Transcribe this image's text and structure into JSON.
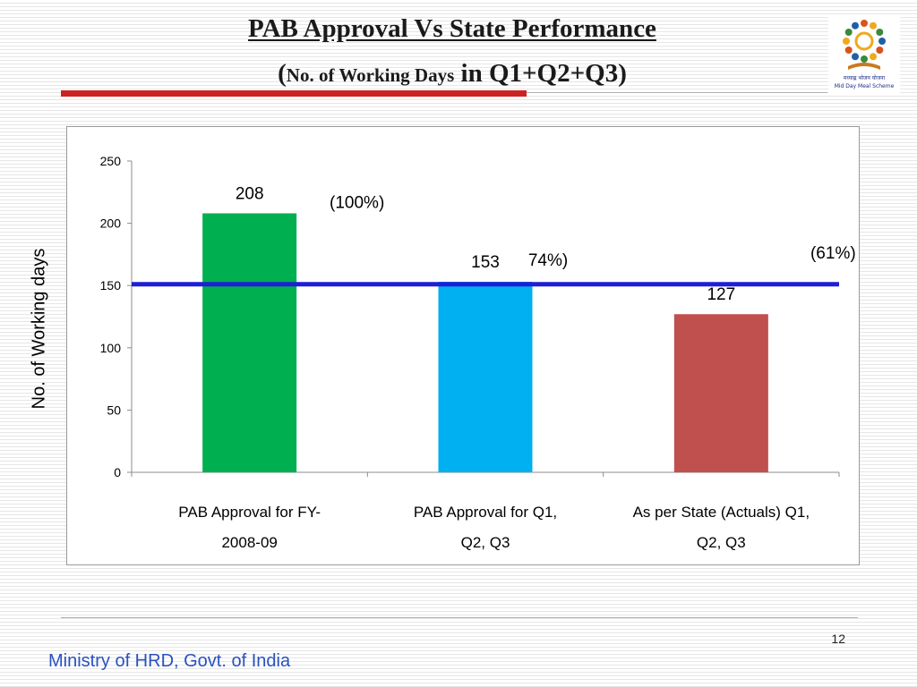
{
  "slide": {
    "title_line1": "PAB Approval  Vs State Performance",
    "title_line2_open": "(",
    "title_line2_small": "No. of Working Days",
    "title_line2_rest": " in Q1+Q2+Q3)",
    "logo_caption_line1": "मध्याह्न भोजन योजना",
    "logo_caption_line2": "Mid Day Meal Scheme",
    "page_number": "12",
    "footer_text": "Ministry of HRD, Govt. of India",
    "accent_color": "#cc2222",
    "footer_color": "#2a52be"
  },
  "chart_data": {
    "type": "bar",
    "categories": [
      [
        "PAB Approval for FY-",
        "2008-09"
      ],
      [
        "PAB Approval for Q1,",
        "Q2, Q3"
      ],
      [
        "As per State (Actuals) Q1,",
        "Q2, Q3"
      ]
    ],
    "values": [
      208,
      153,
      127
    ],
    "bar_colors": [
      "#00b050",
      "#00b0f0",
      "#c0504d"
    ],
    "value_labels": [
      "208",
      "153",
      "127"
    ],
    "percent_labels": [
      "(100%)",
      "74%)",
      "(61%)"
    ],
    "reference_line": {
      "value": 151,
      "color": "#1f1fd6"
    },
    "ylabel": "No. of Working days",
    "xlabel": "",
    "ylim": [
      0,
      250
    ],
    "yticks": [
      0,
      50,
      100,
      150,
      200,
      250
    ],
    "grid": false,
    "legend": "none"
  }
}
